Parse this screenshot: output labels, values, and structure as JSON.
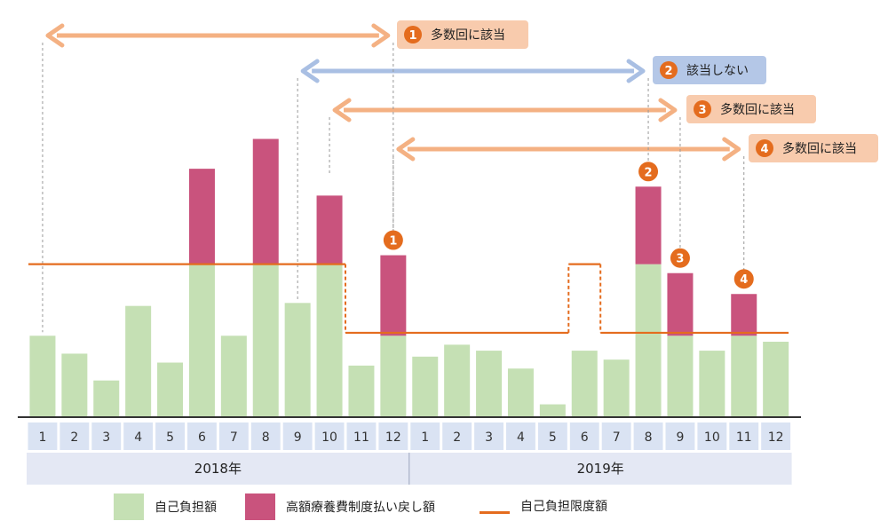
{
  "colors": {
    "self_pay": "#c5e0b4",
    "refund": "#c9537d",
    "limit_line": "#e46c1e",
    "callout_orange_fill": "#f8cbad",
    "callout_blue_fill": "#b4c7e7",
    "arrow_orange": "#f4b183",
    "arrow_blue": "#a9bfe3",
    "badge": "#e46c1e",
    "axis_cell": "#dae3f3",
    "year_band": "#e4e8f4"
  },
  "chart_data": {
    "type": "bar",
    "stacked": true,
    "categories": [
      "1",
      "2",
      "3",
      "4",
      "5",
      "6",
      "7",
      "8",
      "9",
      "10",
      "11",
      "12",
      "1",
      "2",
      "3",
      "4",
      "5",
      "6",
      "7",
      "8",
      "9",
      "10",
      "11",
      "12"
    ],
    "ylim": [
      0,
      100
    ],
    "series": [
      {
        "name": "自己負担額",
        "values": [
          27,
          21,
          12,
          37,
          18,
          51,
          27,
          51,
          38,
          51,
          17,
          27,
          20,
          24,
          22,
          16,
          4,
          22,
          19,
          51,
          27,
          22,
          27,
          25
        ]
      },
      {
        "name": "高額療養費制度払い戻し額",
        "values": [
          0,
          0,
          0,
          0,
          0,
          32,
          0,
          42,
          0,
          23,
          0,
          27,
          0,
          0,
          0,
          0,
          0,
          0,
          0,
          26,
          21,
          0,
          14,
          0
        ]
      }
    ],
    "limit_line": {
      "name": "自己負担限度額",
      "values": [
        51,
        51,
        51,
        51,
        51,
        51,
        51,
        51,
        51,
        51,
        28,
        28,
        28,
        28,
        28,
        28,
        28,
        51,
        28,
        28,
        28,
        28,
        28,
        28
      ]
    },
    "year_groups": [
      {
        "label": "2018年",
        "start": 0,
        "end": 11
      },
      {
        "label": "2019年",
        "start": 12,
        "end": 23
      }
    ],
    "badges": [
      {
        "number": "1",
        "index": 11
      },
      {
        "number": "2",
        "index": 19
      },
      {
        "number": "3",
        "index": 20
      },
      {
        "number": "4",
        "index": 22
      }
    ],
    "ranges": [
      {
        "number": "1",
        "label": "多数回に該当",
        "from": 0,
        "to": 11,
        "style": "orange"
      },
      {
        "number": "2",
        "label": "該当しない",
        "from": 8,
        "to": 19,
        "style": "blue"
      },
      {
        "number": "3",
        "label": "多数回に該当",
        "from": 9,
        "to": 20,
        "style": "orange"
      },
      {
        "number": "4",
        "label": "多数回に該当",
        "from": 11,
        "to": 22,
        "style": "orange"
      }
    ]
  },
  "legend": [
    {
      "label": "自己負担額",
      "kind": "box",
      "color": "#c5e0b4"
    },
    {
      "label": "高額療養費制度払い戻し額",
      "kind": "box",
      "color": "#c9537d"
    },
    {
      "label": "自己負担限度額",
      "kind": "line",
      "color": "#e46c1e"
    }
  ]
}
